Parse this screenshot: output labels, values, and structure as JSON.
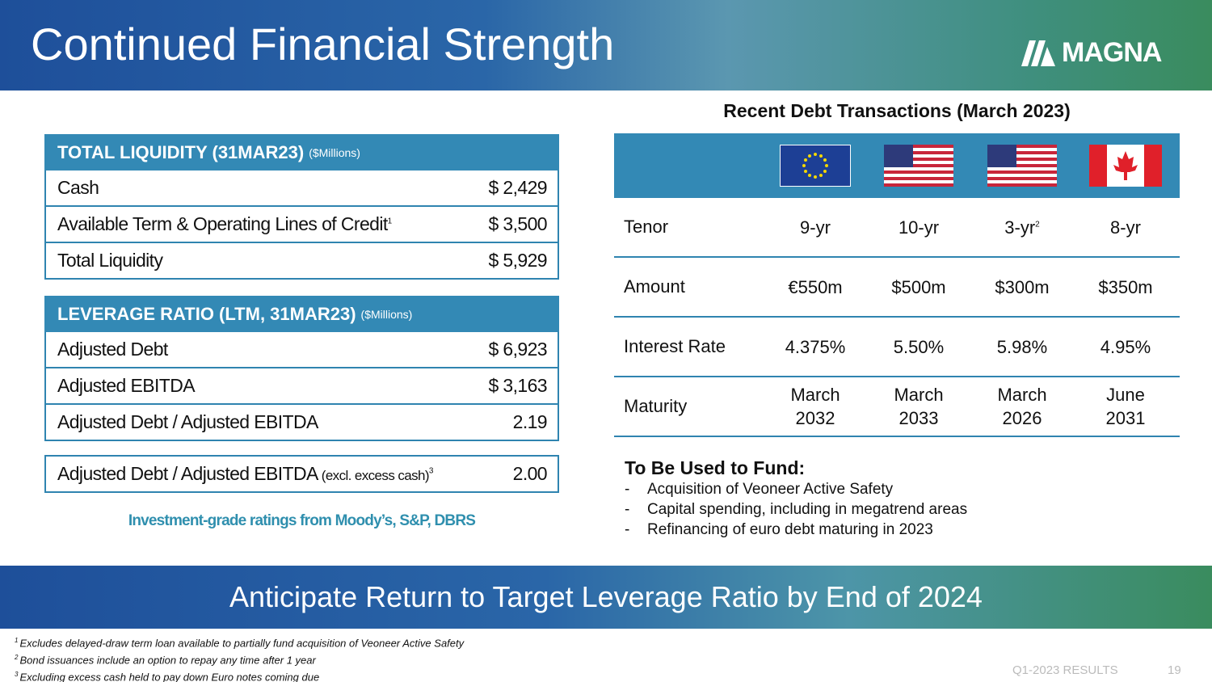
{
  "header": {
    "title": "Continued Financial Strength",
    "logo": "MAGNA"
  },
  "liquidity": {
    "heading": "TOTAL LIQUIDITY (31MAR23)",
    "unit": "($Millions)",
    "rows": [
      {
        "label": "Cash",
        "value": "$ 2,429"
      },
      {
        "label": "Available Term & Operating Lines of Credit",
        "note": "1",
        "value": "$ 3,500"
      },
      {
        "label": "Total Liquidity",
        "value": "$ 5,929"
      }
    ]
  },
  "leverage": {
    "heading": "LEVERAGE RATIO (LTM, 31MAR23)",
    "unit": "($Millions)",
    "rows": [
      {
        "label": "Adjusted Debt",
        "value": "$ 6,923"
      },
      {
        "label": "Adjusted EBITDA",
        "value": "$ 3,163"
      },
      {
        "label": "Adjusted Debt / Adjusted EBITDA",
        "value": "2.19"
      }
    ],
    "excl": {
      "label": "Adjusted Debt / Adjusted EBITDA",
      "qualifier": "(excl. excess cash)",
      "note": "3",
      "value": "2.00"
    }
  },
  "ratings": "Investment-grade ratings from Moody’s, S&P, DBRS",
  "debt": {
    "title": "Recent Debt Transactions (March 2023)",
    "rows": [
      {
        "label": "Tenor",
        "cells": [
          "9-yr",
          "10-yr",
          "3-yr",
          "8-yr"
        ],
        "notes": [
          null,
          null,
          "2",
          null
        ]
      },
      {
        "label": "Amount",
        "cells": [
          "€550m",
          "$500m",
          "$300m",
          "$350m"
        ]
      },
      {
        "label": "Interest Rate",
        "cells": [
          "4.375%",
          "5.50%",
          "5.98%",
          "4.95%"
        ]
      },
      {
        "label": "Maturity",
        "cells": [
          "March 2032",
          "March 2033",
          "March 2026",
          "June 2031"
        ]
      }
    ]
  },
  "fund": {
    "heading": "To Be Used to Fund:",
    "items": [
      "Acquisition of Veoneer Active Safety",
      "Capital spending, including in megatrend areas",
      "Refinancing of euro debt maturing in 2023"
    ]
  },
  "banner": "Anticipate Return to Target Leverage Ratio by End of 2024",
  "footnotes": [
    {
      "mark": "1",
      "text": "Excludes delayed-draw term loan available to partially fund acquisition of Veoneer Active Safety"
    },
    {
      "mark": "2",
      "text": "Bond issuances include an option to repay any time after 1 year"
    },
    {
      "mark": "3",
      "text": "Excluding excess cash held to pay down Euro notes coming due"
    }
  ],
  "footer": {
    "label": "Q1-2023 RESULTS",
    "page": "19"
  }
}
